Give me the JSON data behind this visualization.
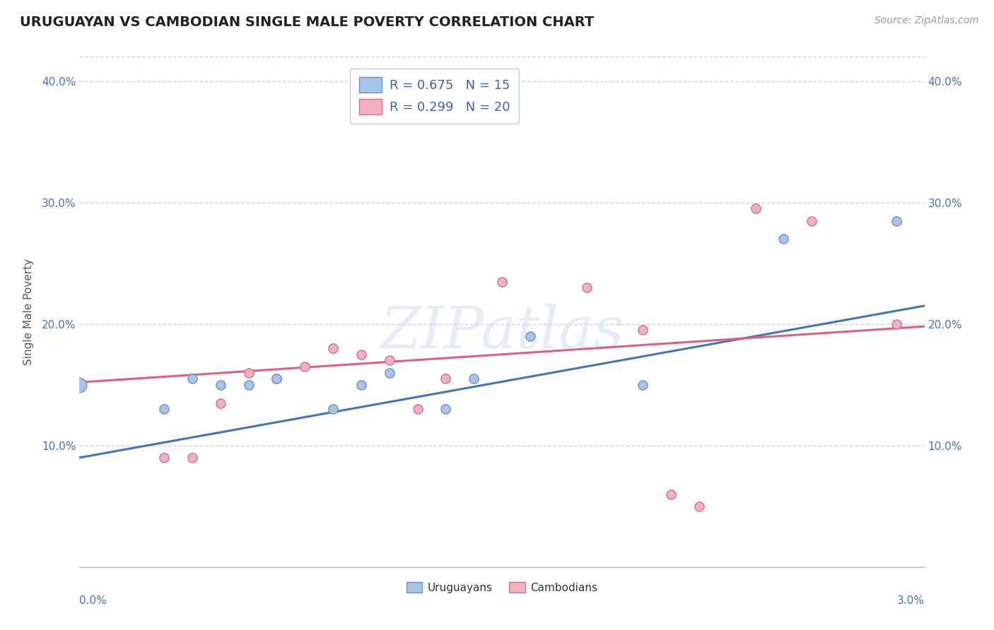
{
  "title": "URUGUAYAN VS CAMBODIAN SINGLE MALE POVERTY CORRELATION CHART",
  "source": "Source: ZipAtlas.com",
  "ylabel": "Single Male Poverty",
  "uruguayan_points": [
    [
      0.0,
      0.15
    ],
    [
      0.003,
      0.13
    ],
    [
      0.004,
      0.155
    ],
    [
      0.005,
      0.15
    ],
    [
      0.006,
      0.15
    ],
    [
      0.007,
      0.155
    ],
    [
      0.009,
      0.13
    ],
    [
      0.01,
      0.15
    ],
    [
      0.011,
      0.16
    ],
    [
      0.013,
      0.13
    ],
    [
      0.014,
      0.155
    ],
    [
      0.016,
      0.19
    ],
    [
      0.02,
      0.15
    ],
    [
      0.025,
      0.27
    ],
    [
      0.029,
      0.285
    ]
  ],
  "cambodian_points": [
    [
      0.0,
      0.15
    ],
    [
      0.003,
      0.09
    ],
    [
      0.004,
      0.09
    ],
    [
      0.005,
      0.135
    ],
    [
      0.006,
      0.16
    ],
    [
      0.007,
      0.155
    ],
    [
      0.008,
      0.165
    ],
    [
      0.009,
      0.18
    ],
    [
      0.01,
      0.175
    ],
    [
      0.011,
      0.17
    ],
    [
      0.012,
      0.13
    ],
    [
      0.013,
      0.155
    ],
    [
      0.015,
      0.235
    ],
    [
      0.018,
      0.23
    ],
    [
      0.02,
      0.195
    ],
    [
      0.021,
      0.06
    ],
    [
      0.022,
      0.05
    ],
    [
      0.024,
      0.295
    ],
    [
      0.026,
      0.285
    ],
    [
      0.029,
      0.2
    ]
  ],
  "uruguayan_line": [
    [
      0.0,
      0.09
    ],
    [
      0.03,
      0.215
    ]
  ],
  "cambodian_line": [
    [
      0.0,
      0.152
    ],
    [
      0.03,
      0.198
    ]
  ],
  "uruguayan_line_color": "#4472c4",
  "cambodian_line_color": "#e06080",
  "uruguayan_dot_color": "#a8c4e8",
  "cambodian_dot_color": "#f4b0c0",
  "uruguayan_dot_edge": "#7090c0",
  "cambodian_dot_edge": "#d07090",
  "x_min": 0.0,
  "x_max": 0.03,
  "y_min": 0.0,
  "y_max": 0.42,
  "yticks": [
    0.1,
    0.2,
    0.3,
    0.4
  ],
  "ytick_labels": [
    "10.0%",
    "20.0%",
    "30.0%",
    "40.0%"
  ],
  "right_ytick_labels": [
    "10.0%",
    "20.0%",
    "30.0%",
    "40.0%"
  ],
  "background_color": "#ffffff",
  "grid_color": "#c8d4e8",
  "watermark": "ZIPatlas",
  "legend_r1": "R = 0.675",
  "legend_n1": "N = 15",
  "legend_r2": "R = 0.299",
  "legend_n2": "N = 20",
  "bottom_label1": "Uruguayans",
  "bottom_label2": "Cambodians"
}
